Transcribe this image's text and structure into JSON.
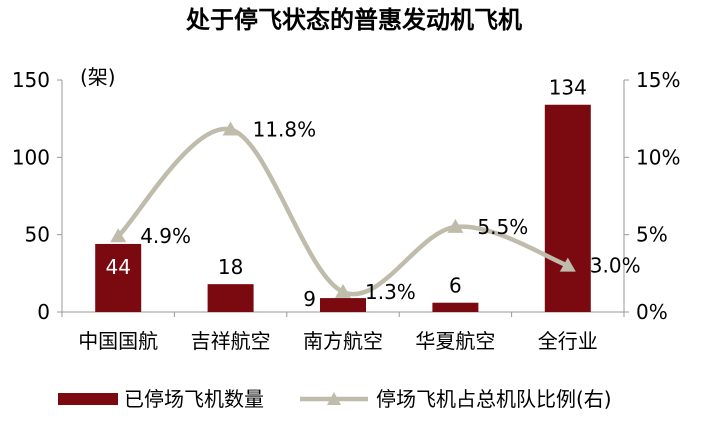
{
  "chart_data": {
    "type": "bar+line",
    "title": "处于停飞状态的普惠发动机飞机",
    "unit_label": "(架)",
    "categories": [
      "中国国航",
      "吉祥航空",
      "南方航空",
      "华夏航空",
      "全行业"
    ],
    "y_left": {
      "min": 0,
      "max": 150,
      "ticks": [
        "0",
        "50",
        "100",
        "150"
      ]
    },
    "y_right": {
      "min": 0,
      "max": 15,
      "ticks": [
        "0%",
        "5%",
        "10%",
        "15%"
      ]
    },
    "series": [
      {
        "name": "已停场飞机数量",
        "type": "bar",
        "axis": "left",
        "color": "#7b0a10",
        "values": [
          44,
          18,
          9,
          6,
          134
        ],
        "labels": [
          "44",
          "18",
          "9",
          "6",
          "134"
        ]
      },
      {
        "name": "停场飞机占总机队比例(右)",
        "type": "line",
        "axis": "right",
        "color": "#c0bcac",
        "values": [
          4.9,
          11.8,
          1.3,
          5.5,
          3.0
        ],
        "labels": [
          "4.9%",
          "11.8%",
          "1.3%",
          "5.5%",
          "3.0%"
        ]
      }
    ],
    "legend_position": "bottom",
    "grid": false
  }
}
